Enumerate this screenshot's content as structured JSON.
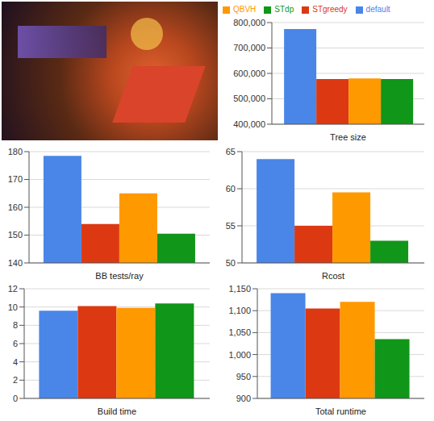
{
  "chart_data": [
    {
      "type": "bar",
      "x_label": "Tree size",
      "categories": [
        null
      ],
      "legend": "top",
      "grid": true,
      "ylim": [
        400000,
        800000
      ],
      "yticks": [
        {
          "value": 400000,
          "label": "400,000"
        },
        {
          "value": 500000,
          "label": "500,000"
        },
        {
          "value": 600000,
          "label": "600,000"
        },
        {
          "value": 700000,
          "label": "700,000"
        },
        {
          "value": 800000,
          "label": "800,000"
        }
      ],
      "series": [
        {
          "name": "default",
          "color": "#4a86e8",
          "values": [
            775000
          ]
        },
        {
          "name": "STgreedy",
          "color": "#dc3912",
          "values": [
            578000
          ]
        },
        {
          "name": "QBVH",
          "color": "#ff9900",
          "values": [
            580000
          ]
        },
        {
          "name": "STdp",
          "color": "#109618",
          "values": [
            578000
          ]
        }
      ]
    },
    {
      "type": "bar",
      "x_label": "BB tests/ray",
      "categories": [
        null
      ],
      "grid": true,
      "ylim": [
        140,
        180
      ],
      "yticks": [
        140,
        150,
        160,
        170,
        180
      ],
      "series": [
        {
          "name": "default",
          "color": "#4a86e8",
          "values": [
            178.5
          ]
        },
        {
          "name": "STgreedy",
          "color": "#dc3912",
          "values": [
            154
          ]
        },
        {
          "name": "QBVH",
          "color": "#ff9900",
          "values": [
            165
          ]
        },
        {
          "name": "STdp",
          "color": "#109618",
          "values": [
            150.5
          ]
        }
      ]
    },
    {
      "type": "bar",
      "x_label": "Rcost",
      "categories": [
        null
      ],
      "grid": true,
      "ylim": [
        50,
        65
      ],
      "yticks": [
        50,
        55,
        60,
        65
      ],
      "series": [
        {
          "name": "default",
          "color": "#4a86e8",
          "values": [
            64
          ]
        },
        {
          "name": "STgreedy",
          "color": "#dc3912",
          "values": [
            55
          ]
        },
        {
          "name": "QBVH",
          "color": "#ff9900",
          "values": [
            59.5
          ]
        },
        {
          "name": "STdp",
          "color": "#109618",
          "values": [
            53
          ]
        }
      ]
    },
    {
      "type": "bar",
      "x_label": "Build time",
      "categories": [
        null
      ],
      "grid": true,
      "ylim": [
        0,
        12
      ],
      "yticks": [
        0,
        2,
        4,
        6,
        8,
        10,
        12
      ],
      "series": [
        {
          "name": "default",
          "color": "#4a86e8",
          "values": [
            9.6
          ]
        },
        {
          "name": "STgreedy",
          "color": "#dc3912",
          "values": [
            10.1
          ]
        },
        {
          "name": "QBVH",
          "color": "#ff9900",
          "values": [
            9.9
          ]
        },
        {
          "name": "STdp",
          "color": "#109618",
          "values": [
            10.4
          ]
        }
      ]
    },
    {
      "type": "bar",
      "x_label": "Total runtime",
      "categories": [
        null
      ],
      "grid": true,
      "ylim": [
        900,
        1150
      ],
      "yticks": [
        900,
        950,
        {
          "value": 1000,
          "label": "1,000"
        },
        {
          "value": 1050,
          "label": "1,050"
        },
        {
          "value": 1100,
          "label": "1,100"
        },
        {
          "value": 1150,
          "label": "1,150"
        }
      ],
      "series": [
        {
          "name": "default",
          "color": "#4a86e8",
          "values": [
            1140
          ]
        },
        {
          "name": "STgreedy",
          "color": "#dc3912",
          "values": [
            1105
          ]
        },
        {
          "name": "QBVH",
          "color": "#ff9900",
          "values": [
            1120
          ]
        },
        {
          "name": "STdp",
          "color": "#109618",
          "values": [
            1035
          ]
        }
      ]
    }
  ]
}
